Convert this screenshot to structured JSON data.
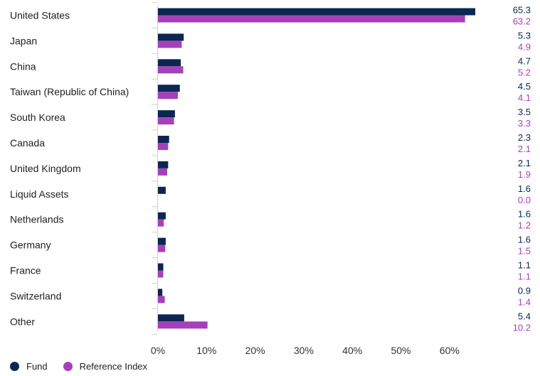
{
  "chart_data": {
    "type": "bar",
    "orientation": "horizontal",
    "categories": [
      "United States",
      "Japan",
      "China",
      "Taiwan (Republic of China)",
      "South Korea",
      "Canada",
      "United Kingdom",
      "Liquid Assets",
      "Netherlands",
      "Germany",
      "France",
      "Switzerland",
      "Other"
    ],
    "series": [
      {
        "name": "Fund",
        "color": "#0b2653",
        "values": [
          65.3,
          5.3,
          4.7,
          4.5,
          3.5,
          2.3,
          2.1,
          1.6,
          1.6,
          1.6,
          1.1,
          0.9,
          5.4
        ]
      },
      {
        "name": "Reference Index",
        "color": "#a541b8",
        "values": [
          63.2,
          4.9,
          5.2,
          4.1,
          3.3,
          2.1,
          1.9,
          0.0,
          1.2,
          1.5,
          1.1,
          1.4,
          10.2
        ]
      }
    ],
    "value_labels": {
      "Fund": [
        "65.3",
        "5.3",
        "4.7",
        "4.5",
        "3.5",
        "2.3",
        "2.1",
        "1.6",
        "1.6",
        "1.6",
        "1.1",
        "0.9",
        "5.4"
      ],
      "Reference Index": [
        "63.2",
        "4.9",
        "5.2",
        "4.1",
        "3.3",
        "2.1",
        "1.9",
        "0.0",
        "1.2",
        "1.5",
        "1.1",
        "1.4",
        "10.2"
      ]
    },
    "xlim": [
      0,
      65
    ],
    "xticks": [
      0,
      10,
      20,
      30,
      40,
      50,
      60
    ],
    "xtick_labels": [
      "0%",
      "10%",
      "20%",
      "30%",
      "40%",
      "50%",
      "60%"
    ],
    "grid": false,
    "legend_position": "bottom-left",
    "title": "",
    "xlabel": "",
    "ylabel": ""
  },
  "legend": {
    "fund_label": "Fund",
    "reference_label": "Reference Index"
  }
}
